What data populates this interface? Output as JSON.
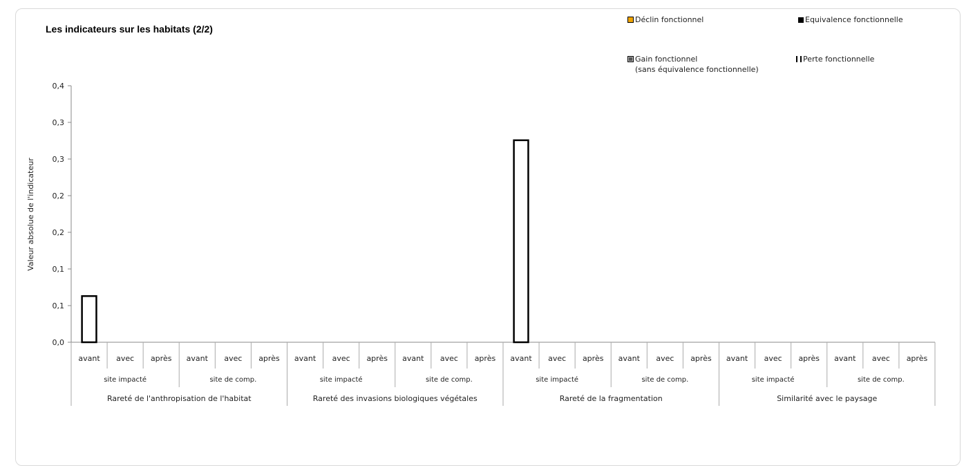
{
  "chart_data": {
    "type": "bar",
    "title": "Les indicateurs sur les habitats (2/2)",
    "ylabel": "Valeur absolue de l'indicateur",
    "ylim": [
      0,
      0.4
    ],
    "y_ticks": [
      "0,0",
      "0,1",
      "0,1",
      "0,2",
      "0,2",
      "0,3",
      "0,3",
      "0,4"
    ],
    "grid": false,
    "legend_position": "top-right",
    "groups": [
      "Rareté de l'anthropisation de l'habitat",
      "Rareté des invasions biologiques végétales",
      "Rareté de la fragmentation",
      "Similarité avec le paysage"
    ],
    "sites": [
      "site impacté",
      "site de comp.",
      "site impacté",
      "site de comp.",
      "site impacté",
      "site de comp.",
      "site impacté",
      "site de comp."
    ],
    "categories": [
      "avant",
      "avec",
      "après",
      "avant",
      "avec",
      "après",
      "avant",
      "avec",
      "après",
      "avant",
      "avec",
      "après",
      "avant",
      "avec",
      "après",
      "avant",
      "avec",
      "après",
      "avant",
      "avec",
      "après",
      "avant",
      "avec",
      "après"
    ],
    "series": [
      {
        "name": "Déclin fonctionnel",
        "color": "#f0a500",
        "values": [
          0,
          0,
          0,
          0,
          0,
          0,
          0,
          0,
          0,
          0,
          0,
          0,
          0,
          0,
          0,
          0,
          0,
          0,
          0,
          0,
          0,
          0,
          0,
          0
        ]
      },
      {
        "name": "Equivalence fonctionnelle",
        "color": "#000000",
        "values": [
          0,
          0,
          0,
          0,
          0,
          0,
          0,
          0,
          0,
          0,
          0,
          0,
          0,
          0,
          0,
          0,
          0,
          0,
          0,
          0,
          0,
          0,
          0,
          0
        ]
      },
      {
        "name": "Gain fonctionnel (sans équivalence fonctionnelle)",
        "color": "#555555",
        "values": [
          0,
          0,
          0,
          0,
          0,
          0,
          0,
          0,
          0,
          0,
          0,
          0,
          0,
          0,
          0,
          0,
          0,
          0,
          0,
          0,
          0,
          0,
          0,
          0
        ]
      },
      {
        "name": "Perte fonctionnelle",
        "color": "#ffffff",
        "values": [
          0.072,
          0,
          0,
          0,
          0,
          0,
          0,
          0,
          0,
          0,
          0,
          0,
          0.315,
          0,
          0,
          0,
          0,
          0,
          0,
          0,
          0,
          0,
          0,
          0
        ]
      }
    ]
  },
  "legend": {
    "decline": "Déclin fonctionnel",
    "equivalence": "Equivalence fonctionnelle",
    "gain_line1": "Gain fonctionnel",
    "gain_line2": "(sans équivalence fonctionnelle)",
    "perte": "Perte fonctionnelle"
  }
}
